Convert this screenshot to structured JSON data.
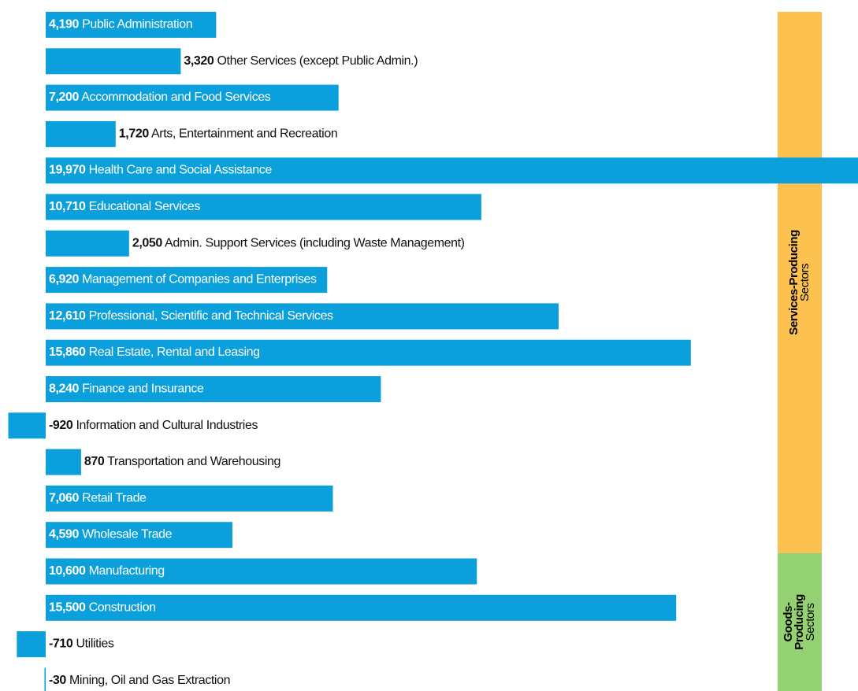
{
  "chart_data": {
    "type": "bar",
    "orientation": "horizontal",
    "color": "#0ba0dc",
    "categories": [
      "Public Administration",
      "Other Services (except Public Admin.)",
      "Accommodation and Food Services",
      "Arts, Entertainment and Recreation",
      "Health Care and Social Assistance",
      "Educational Services",
      "Admin. Support Services (including Waste Management)",
      "Management of Companies and Enterprises",
      "Professional, Scientific and Technical Services",
      "Real Estate, Rental and Leasing",
      "Finance and Insurance",
      "Information and Cultural Industries",
      "Transportation and Warehousing",
      "Retail Trade",
      "Wholesale Trade",
      "Manufacturing",
      "Construction",
      "Utilities",
      "Mining, Oil and Gas Extraction"
    ],
    "values": [
      4190,
      3320,
      7200,
      1720,
      19970,
      10710,
      2050,
      6920,
      12610,
      15860,
      8240,
      -920,
      870,
      7060,
      4590,
      10600,
      15500,
      -710,
      -30
    ],
    "value_labels": [
      "4,190",
      "3,320",
      "7,200",
      "1,720",
      "19,970",
      "10,710",
      "2,050",
      "6,920",
      "12,610",
      "15,860",
      "8,240",
      "-920",
      "870",
      "7,060",
      "4,590",
      "10,600",
      "15,500",
      "-710",
      "-30"
    ],
    "groups": [
      {
        "name": [
          "Services-Producing"
        ],
        "subtitle": "Sectors",
        "color": "#fcc14e",
        "size": 15
      },
      {
        "name": [
          "Goods-",
          "Producing"
        ],
        "subtitle": "Sectors",
        "color": "#93d172",
        "size": 4
      }
    ]
  }
}
